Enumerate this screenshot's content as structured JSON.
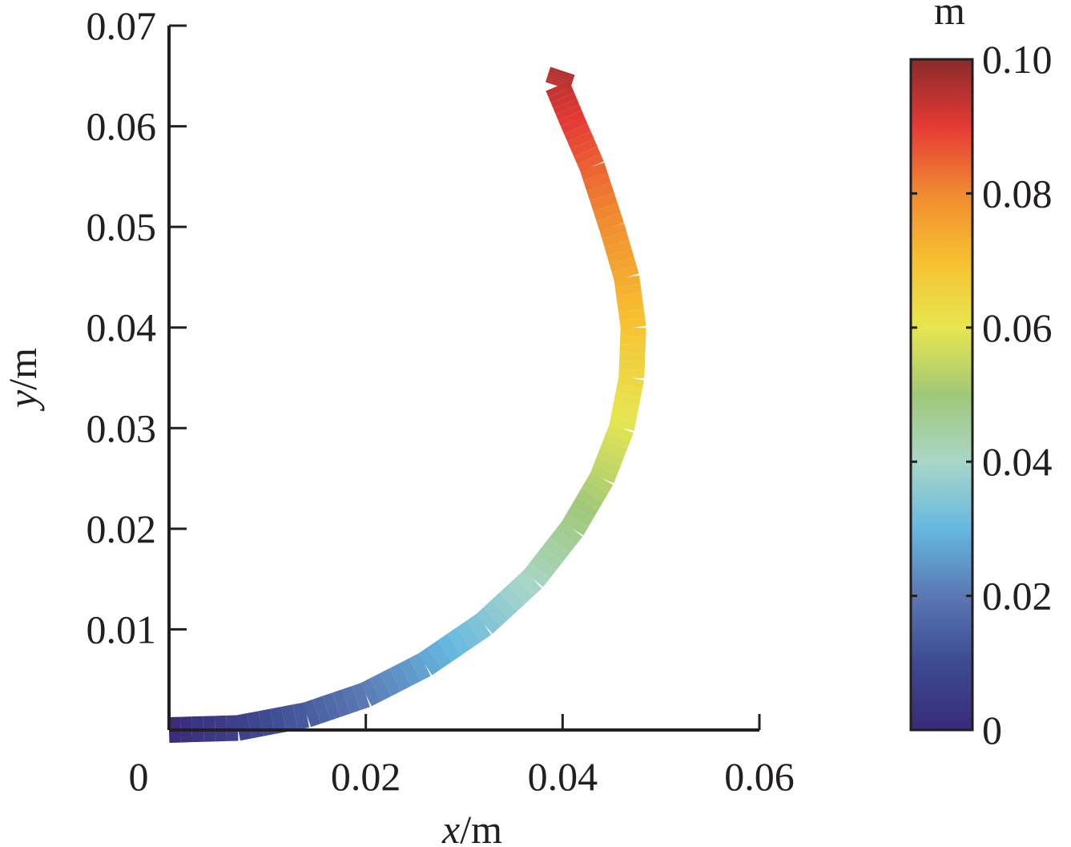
{
  "chart_data": {
    "type": "line",
    "title": "",
    "xlabel": {
      "var": "x",
      "unit": "/m"
    },
    "ylabel": {
      "var": "y",
      "unit": "/m"
    },
    "xlim": [
      0,
      0.06
    ],
    "ylim": [
      0,
      0.07
    ],
    "x_ticks": [
      "0",
      "0.02",
      "0.04",
      "0.06"
    ],
    "y_ticks": [
      "0.01",
      "0.02",
      "0.03",
      "0.04",
      "0.05",
      "0.06",
      "0.07"
    ],
    "grid": false,
    "series": [
      {
        "points": [
          {
            "x": 0.0,
            "y": 0.0,
            "c": 0.0
          },
          {
            "x": 0.007,
            "y": 0.0002,
            "c": 0.007
          },
          {
            "x": 0.014,
            "y": 0.0015,
            "c": 0.014
          },
          {
            "x": 0.02,
            "y": 0.0035,
            "c": 0.0205
          },
          {
            "x": 0.026,
            "y": 0.0065,
            "c": 0.027
          },
          {
            "x": 0.032,
            "y": 0.0105,
            "c": 0.034
          },
          {
            "x": 0.037,
            "y": 0.015,
            "c": 0.041
          },
          {
            "x": 0.041,
            "y": 0.02,
            "c": 0.0475
          },
          {
            "x": 0.044,
            "y": 0.025,
            "c": 0.0535
          },
          {
            "x": 0.046,
            "y": 0.03,
            "c": 0.059
          },
          {
            "x": 0.047,
            "y": 0.035,
            "c": 0.064
          },
          {
            "x": 0.0472,
            "y": 0.04,
            "c": 0.069
          },
          {
            "x": 0.0465,
            "y": 0.045,
            "c": 0.074
          },
          {
            "x": 0.045,
            "y": 0.05,
            "c": 0.079
          },
          {
            "x": 0.043,
            "y": 0.056,
            "c": 0.085
          },
          {
            "x": 0.041,
            "y": 0.0605,
            "c": 0.09
          },
          {
            "x": 0.0395,
            "y": 0.064,
            "c": 0.094
          },
          {
            "x": 0.04,
            "y": 0.0655,
            "c": 0.096
          }
        ]
      }
    ],
    "colorbar": {
      "unit_label": "m",
      "range": [
        0,
        0.1
      ],
      "ticks": [
        "0",
        "0.02",
        "0.04",
        "0.06",
        "0.08",
        "0.10"
      ],
      "colormap": [
        "#3a2a78",
        "#3d4b92",
        "#5a78b4",
        "#66b8e0",
        "#a8d6c8",
        "#a0c878",
        "#e6e650",
        "#f7c030",
        "#f08a30",
        "#e53a35",
        "#8a2a2a"
      ]
    }
  }
}
